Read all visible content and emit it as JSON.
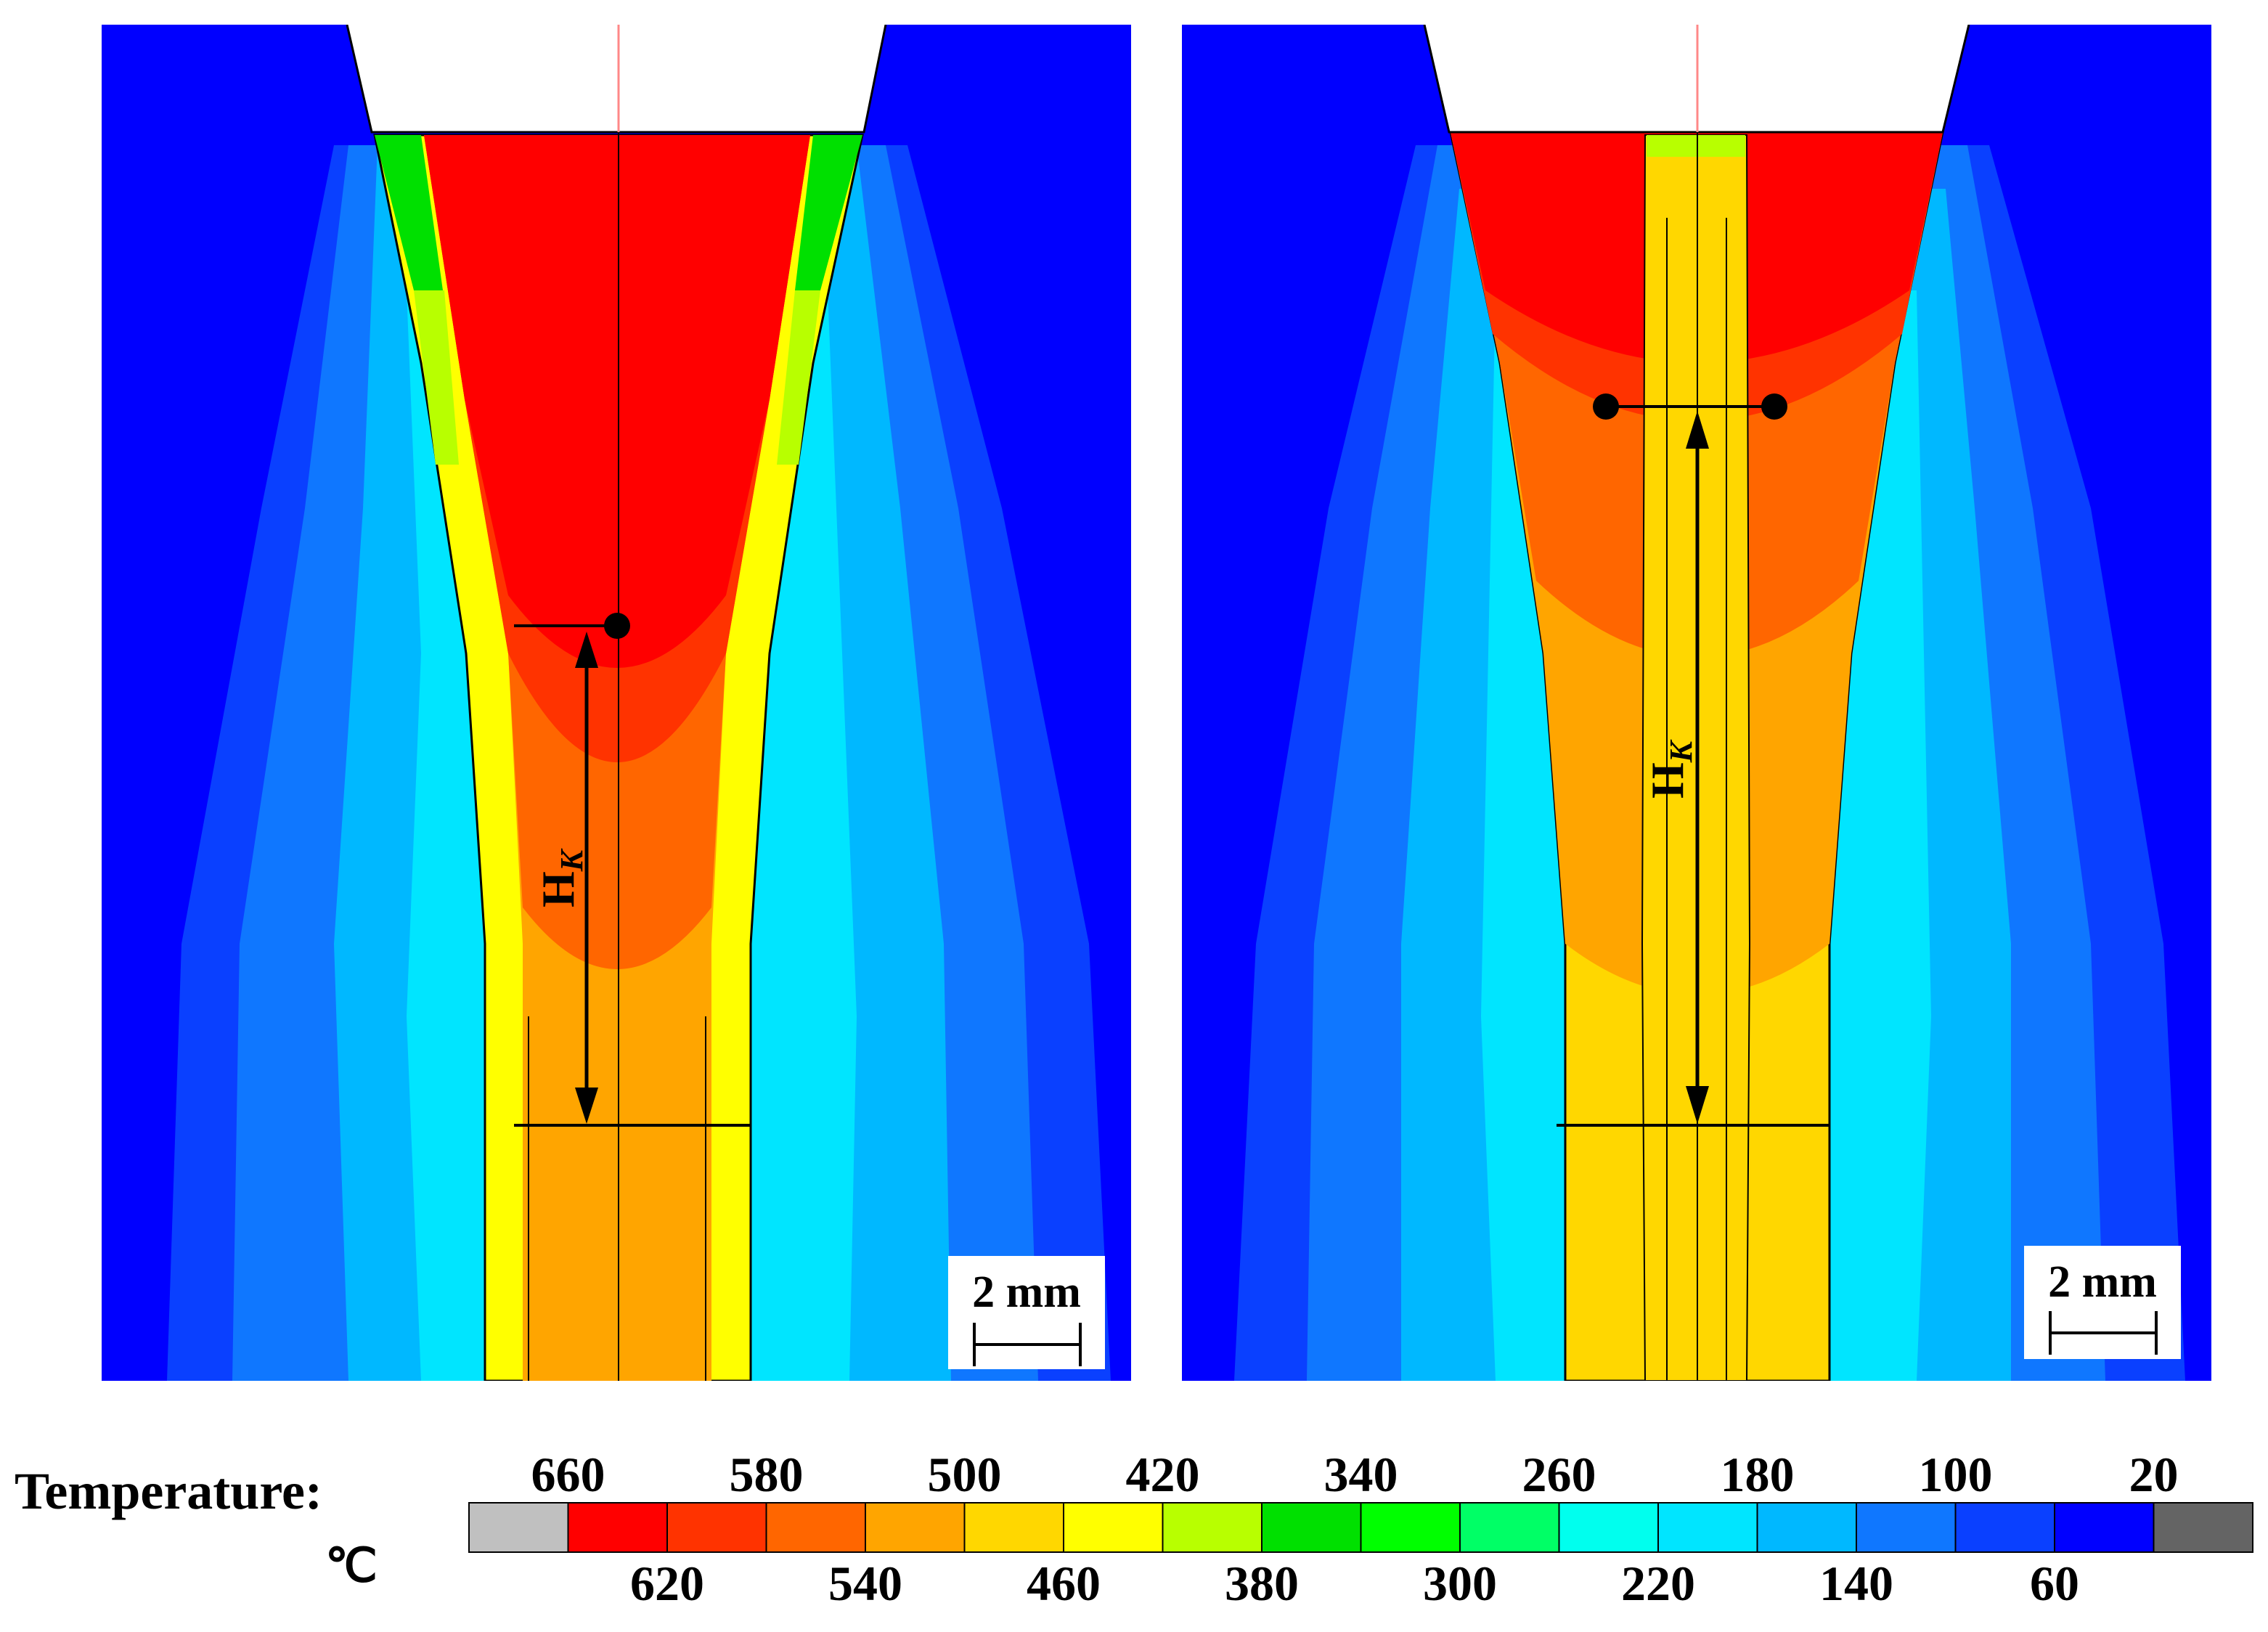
{
  "panels": [
    {
      "id": "left",
      "marker_label": "H",
      "marker_subscript": "K",
      "scale_bar": "2 mm"
    },
    {
      "id": "right",
      "marker_label": "H",
      "marker_subscript": "K",
      "scale_bar": "2 mm"
    }
  ],
  "legend": {
    "title": "Temperature:",
    "unit": "℃",
    "top_ticks": [
      "660",
      "580",
      "500",
      "420",
      "340",
      "260",
      "180",
      "100",
      "20"
    ],
    "bottom_ticks": [
      "620",
      "540",
      "460",
      "380",
      "300",
      "220",
      "140",
      "60"
    ],
    "colors": [
      "#c0c0c0",
      "#ff0000",
      "#ff3300",
      "#ff6600",
      "#ffa500",
      "#ffd700",
      "#ffff00",
      "#b8ff00",
      "#00e000",
      "#00ff00",
      "#00ff66",
      "#00ffee",
      "#00e5ff",
      "#00b8ff",
      "#0f77ff",
      "#0a40ff",
      "#0000ff",
      "#646464"
    ]
  },
  "colors": {
    "background_metal": "#0000ff",
    "ring_140": "#0a40ff",
    "ring_100": "#0f77ff",
    "ring_60": "#00b8ff",
    "ring_cyan": "#00e5ff",
    "hot_core": "#ff0000",
    "hot_2": "#ff3300",
    "hot_3": "#ff6600",
    "warm": "#ffa500",
    "gold": "#ffd700",
    "yellow": "#ffff00",
    "lime": "#b8ff00",
    "green": "#00e000",
    "axis_line": "#ff8888"
  }
}
